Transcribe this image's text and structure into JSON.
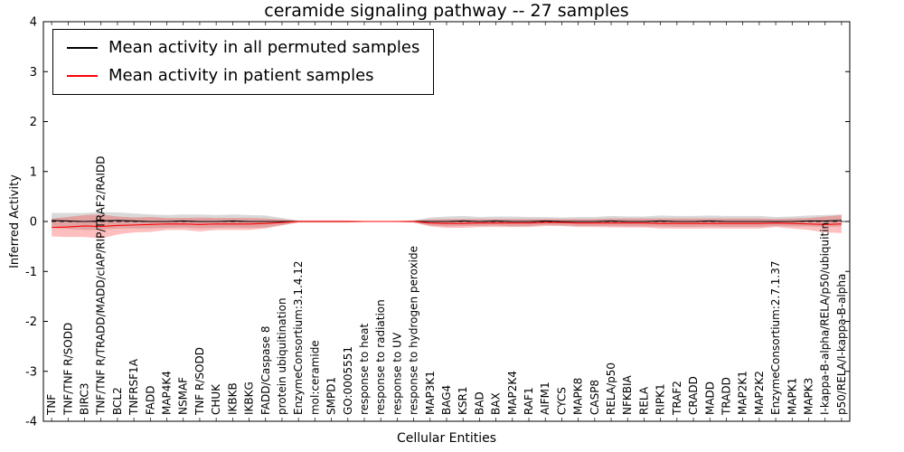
{
  "chart_data": {
    "type": "line",
    "title": "ceramide signaling pathway -- 27 samples",
    "xlabel": "Cellular Entities",
    "ylabel": "Inferred Activity",
    "ylim": [
      -4,
      4
    ],
    "yticks": [
      -4,
      -3,
      -2,
      -1,
      0,
      1,
      2,
      3,
      4
    ],
    "yticklabels": [
      "-4",
      "-3",
      "-2",
      "-1",
      "0",
      "1",
      "2",
      "3",
      "4"
    ],
    "grid": false,
    "legend_position": "upper left",
    "zero_line": {
      "style": "dashed",
      "color": "#000000"
    },
    "categories": [
      "TNF",
      "TNF/TNF R/SODD",
      "BIRC3",
      "TNF/TNF R/TRADD/MADD/cIAP/RIP/TRAF2/RAIDD",
      "BCL2",
      "TNFRSF1A",
      "FADD",
      "MAP4K4",
      "NSMAF",
      "TNF R/SODD",
      "CHUK",
      "IKBKB",
      "IKBKG",
      "FADD/Caspase 8",
      "protein ubiquitination",
      "EnzymeConsortium:3.1.4.12",
      "mol:ceramide",
      "SMPD1",
      "GO:0005551",
      "response to heat",
      "response to radiation",
      "response to UV",
      "response to hydrogen peroxide",
      "MAP3K1",
      "BAG4",
      "KSR1",
      "BAD",
      "BAX",
      "MAP2K4",
      "RAF1",
      "AIFM1",
      "CYCS",
      "MAPK8",
      "CASP8",
      "RELA/p50",
      "NFKBIA",
      "RELA",
      "RIPK1",
      "TRAF2",
      "CRADD",
      "MADD",
      "TRADD",
      "MAP2K1",
      "MAP2K2",
      "EnzymeConsortium:2.7.1.37",
      "MAPK1",
      "MAPK3",
      "I-kappa-B-alpha/RELA/p50/ubiquitin",
      "p50/RELA/I-kappa-B-alpha"
    ],
    "series": [
      {
        "name": "Mean activity in all permuted samples",
        "color": "#000000",
        "band_color": "#000000",
        "band_opacity": 0.15,
        "values": [
          0.02,
          0.01,
          0.0,
          0.01,
          0.02,
          0.01,
          0.0,
          0.0,
          0.01,
          0.0,
          0.0,
          0.01,
          0.0,
          0.0,
          0.0,
          0.0,
          0.0,
          0.0,
          0.0,
          0.0,
          0.0,
          0.0,
          0.0,
          0.0,
          0.0,
          0.01,
          0.0,
          0.01,
          0.0,
          0.0,
          0.01,
          0.0,
          0.0,
          0.0,
          0.01,
          0.0,
          0.0,
          0.01,
          0.0,
          0.0,
          0.01,
          0.0,
          0.0,
          0.0,
          0.0,
          0.0,
          0.01,
          0.01,
          0.02
        ],
        "band": [
          0.15,
          0.16,
          0.17,
          0.18,
          0.16,
          0.15,
          0.14,
          0.13,
          0.13,
          0.14,
          0.13,
          0.13,
          0.13,
          0.12,
          0.07,
          0.02,
          0.02,
          0.02,
          0.02,
          0.01,
          0.01,
          0.01,
          0.02,
          0.08,
          0.1,
          0.1,
          0.09,
          0.09,
          0.1,
          0.09,
          0.08,
          0.08,
          0.09,
          0.09,
          0.1,
          0.1,
          0.1,
          0.11,
          0.11,
          0.11,
          0.11,
          0.11,
          0.11,
          0.11,
          0.09,
          0.1,
          0.11,
          0.12,
          0.12
        ]
      },
      {
        "name": "Mean activity in patient samples",
        "color": "#ff0000",
        "band_color": "#ff0000",
        "band_opacity": 0.25,
        "values": [
          -0.12,
          -0.11,
          -0.09,
          -0.1,
          -0.08,
          -0.07,
          -0.06,
          -0.05,
          -0.05,
          -0.06,
          -0.05,
          -0.05,
          -0.05,
          -0.04,
          -0.02,
          0.0,
          0.0,
          0.0,
          0.0,
          0.0,
          0.0,
          0.0,
          0.0,
          -0.03,
          -0.04,
          -0.04,
          -0.03,
          -0.03,
          -0.03,
          -0.03,
          -0.02,
          -0.02,
          -0.03,
          -0.03,
          -0.03,
          -0.03,
          -0.03,
          -0.04,
          -0.04,
          -0.04,
          -0.04,
          -0.04,
          -0.04,
          -0.04,
          -0.03,
          -0.04,
          -0.05,
          -0.06,
          -0.05
        ],
        "band": [
          0.18,
          0.2,
          0.22,
          0.24,
          0.18,
          0.15,
          0.15,
          0.12,
          0.12,
          0.14,
          0.12,
          0.12,
          0.12,
          0.1,
          0.06,
          0.02,
          0.02,
          0.02,
          0.02,
          0.01,
          0.01,
          0.01,
          0.02,
          0.07,
          0.09,
          0.09,
          0.08,
          0.08,
          0.08,
          0.08,
          0.07,
          0.07,
          0.08,
          0.08,
          0.09,
          0.09,
          0.09,
          0.1,
          0.1,
          0.1,
          0.1,
          0.1,
          0.1,
          0.1,
          0.08,
          0.1,
          0.12,
          0.16,
          0.18
        ]
      }
    ]
  }
}
